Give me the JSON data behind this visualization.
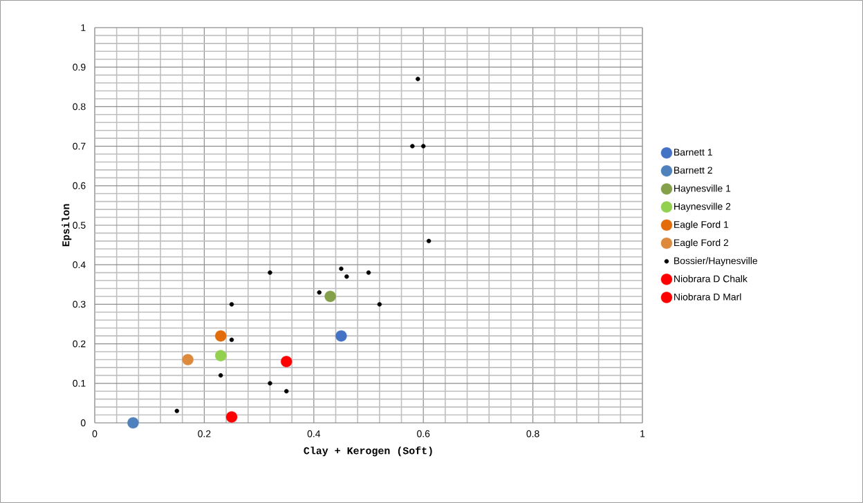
{
  "chart_data": {
    "type": "scatter",
    "xlabel": "Clay + Kerogen (Soft)",
    "ylabel": "Epsilon",
    "xlim": [
      0,
      1
    ],
    "ylim": [
      0,
      1
    ],
    "xticks": [
      0,
      0.2,
      0.4,
      0.6,
      0.8,
      1
    ],
    "yticks": [
      0,
      0.1,
      0.2,
      0.3,
      0.4,
      0.5,
      0.6,
      0.7,
      0.8,
      0.9,
      1
    ],
    "grid": true,
    "legend": "right",
    "marker": "circle",
    "series": [
      {
        "name": "Barnett 1",
        "color": "#4472c4",
        "x": [
          0.45
        ],
        "values": [
          0.22
        ]
      },
      {
        "name": "Barnett 2",
        "color": "#4f81bd",
        "x": [
          0.07
        ],
        "values": [
          0
        ]
      },
      {
        "name": "Haynesville 1",
        "color": "#84a04a",
        "x": [
          0.43
        ],
        "values": [
          0.32
        ]
      },
      {
        "name": "Haynesville 2",
        "color": "#92d050",
        "x": [
          0.23
        ],
        "values": [
          0.17
        ]
      },
      {
        "name": "Eagle Ford 1",
        "color": "#e36c0a",
        "x": [
          0.23
        ],
        "values": [
          0.22
        ]
      },
      {
        "name": "Eagle Ford 2",
        "color": "#dd8a3c",
        "x": [
          0.17
        ],
        "values": [
          0.16
        ]
      },
      {
        "name": "Bossier/Haynesville",
        "color": "#000000",
        "x": [
          0.59,
          0.58,
          0.6,
          0.61,
          0.32,
          0.45,
          0.46,
          0.5,
          0.41,
          0.52,
          0.25,
          0.25,
          0.23,
          0.32,
          0.35,
          0.15
        ],
        "values": [
          0.87,
          0.7,
          0.7,
          0.46,
          0.38,
          0.39,
          0.37,
          0.38,
          0.33,
          0.3,
          0.3,
          0.21,
          0.12,
          0.1,
          0.08,
          0.03
        ]
      },
      {
        "name": "Niobrara D Chalk",
        "color": "#ff0000",
        "x": [
          0.25
        ],
        "values": [
          0.015
        ]
      },
      {
        "name": "Niobrara D Marl",
        "color": "#ff0000",
        "x": [
          0.35
        ],
        "values": [
          0.155
        ]
      }
    ]
  }
}
